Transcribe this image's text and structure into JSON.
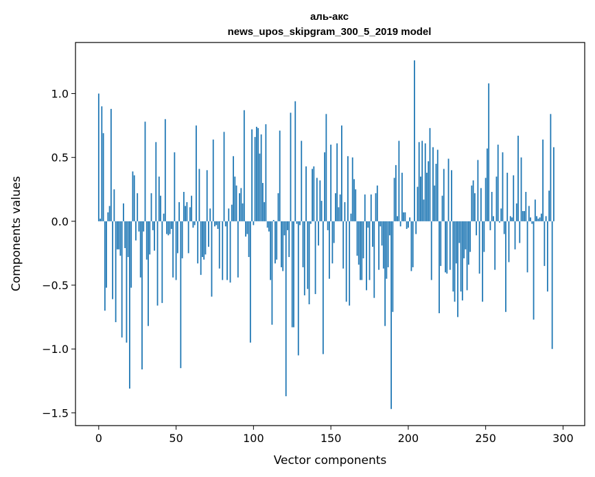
{
  "chart_data": {
    "type": "bar",
    "title_line1": "аль-акс",
    "title_line2": "news_upos_skipgram_300_5_2019 model",
    "xlabel": "Vector components",
    "ylabel": "Components values",
    "xlim": [
      -15,
      314
    ],
    "ylim": [
      -1.6,
      1.4
    ],
    "x_ticks": [
      0,
      50,
      100,
      150,
      200,
      250,
      300
    ],
    "y_ticks": [
      -1.5,
      -1.0,
      -0.5,
      0.0,
      0.5,
      1.0
    ],
    "y_tick_labels": [
      "−1.5",
      "−1.0",
      "−0.5",
      "0.0",
      "0.5",
      "1.0"
    ],
    "bar_color": "#1f77b4",
    "grid": false,
    "values": [
      1.0,
      0.02,
      0.9,
      0.69,
      -0.7,
      -0.52,
      0.07,
      0.12,
      0.88,
      -0.61,
      0.25,
      -0.79,
      -0.22,
      -0.22,
      -0.27,
      -0.91,
      0.14,
      -0.21,
      -0.95,
      -0.28,
      -1.31,
      -0.52,
      0.39,
      0.36,
      -0.15,
      0.22,
      -0.08,
      -0.44,
      -1.16,
      -0.08,
      0.78,
      -0.3,
      -0.82,
      -0.26,
      0.22,
      -0.07,
      -0.23,
      0.62,
      -0.66,
      0.35,
      0.2,
      -0.64,
      0.06,
      0.8,
      -0.1,
      -0.11,
      -0.1,
      -0.06,
      -0.44,
      0.54,
      -0.46,
      -0.25,
      0.15,
      -1.15,
      -0.29,
      0.23,
      0.12,
      0.15,
      -0.25,
      0.11,
      0.2,
      -0.05,
      -0.03,
      0.75,
      -0.33,
      0.41,
      -0.42,
      -0.28,
      -0.3,
      -0.26,
      0.4,
      -0.2,
      0.1,
      -0.59,
      0.64,
      -0.04,
      -0.03,
      -0.06,
      -0.37,
      0.0,
      -0.46,
      0.7,
      -0.04,
      -0.46,
      0.1,
      -0.48,
      0.13,
      0.51,
      0.35,
      0.28,
      -0.44,
      0.22,
      0.26,
      0.14,
      0.87,
      -0.12,
      -0.1,
      -0.28,
      -0.95,
      0.72,
      -0.03,
      0.66,
      0.74,
      0.73,
      0.53,
      0.68,
      0.3,
      0.15,
      0.76,
      -0.05,
      -0.08,
      -0.46,
      -0.81,
      0.01,
      -0.33,
      -0.3,
      0.22,
      0.71,
      -0.36,
      -0.39,
      -0.11,
      -1.37,
      -0.07,
      -0.28,
      0.85,
      -0.83,
      -0.83,
      0.94,
      -0.02,
      -1.05,
      -0.03,
      0.63,
      -0.36,
      -0.58,
      0.43,
      -0.53,
      -0.65,
      -0.02,
      0.41,
      0.43,
      -0.57,
      0.34,
      -0.19,
      0.32,
      0.16,
      -1.04,
      0.54,
      0.84,
      -0.07,
      -0.45,
      0.6,
      -0.33,
      -0.17,
      0.22,
      0.61,
      0.11,
      0.21,
      0.75,
      -0.37,
      0.15,
      -0.63,
      0.51,
      -0.66,
      0.06,
      0.5,
      0.33,
      0.25,
      -0.27,
      -0.34,
      -0.46,
      -0.46,
      -0.29,
      0.21,
      -0.54,
      -0.05,
      -0.46,
      0.21,
      -0.2,
      -0.6,
      0.22,
      0.28,
      -0.38,
      -0.04,
      -0.19,
      -0.37,
      -0.82,
      -0.45,
      -0.36,
      -0.11,
      -1.47,
      -0.71,
      0.34,
      0.44,
      0.04,
      0.63,
      -0.04,
      0.38,
      0.07,
      0.07,
      -0.06,
      -0.05,
      0.03,
      -0.39,
      -0.36,
      1.26,
      -0.1,
      0.27,
      0.62,
      0.35,
      0.63,
      0.17,
      0.61,
      0.38,
      0.47,
      0.73,
      -0.46,
      0.58,
      0.28,
      0.45,
      0.56,
      -0.72,
      -0.35,
      0.2,
      0.41,
      -0.4,
      -0.41,
      0.49,
      -0.38,
      0.4,
      -0.55,
      -0.63,
      -0.33,
      -0.75,
      -0.17,
      -0.55,
      -0.62,
      -0.29,
      -0.22,
      -0.54,
      -0.34,
      -0.24,
      0.28,
      0.32,
      0.22,
      -0.11,
      0.48,
      -0.41,
      0.26,
      -0.63,
      -0.24,
      0.34,
      0.57,
      1.08,
      -0.07,
      0.23,
      0.04,
      -0.38,
      0.35,
      0.6,
      -0.01,
      0.1,
      0.54,
      -0.1,
      -0.71,
      0.38,
      -0.32,
      0.04,
      0.03,
      0.36,
      -0.22,
      0.14,
      0.67,
      -0.17,
      0.5,
      0.08,
      0.08,
      0.23,
      -0.4,
      0.12,
      0.03,
      -0.02,
      -0.77,
      0.17,
      0.04,
      0.02,
      0.03,
      0.06,
      0.64,
      -0.35,
      0.04,
      -0.55,
      0.24,
      0.84,
      -1.0,
      0.58
    ]
  }
}
